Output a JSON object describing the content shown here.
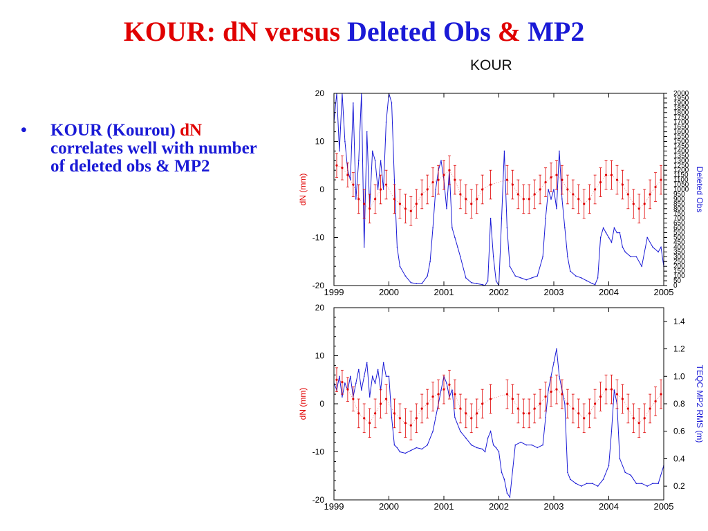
{
  "slide": {
    "title_parts": [
      {
        "text": "KOUR:  dN versus ",
        "color": "red"
      },
      {
        "text": "Deleted Obs ",
        "color": "blue"
      },
      {
        "text": "& ",
        "color": "red"
      },
      {
        "text": "MP2",
        "color": "blue"
      }
    ],
    "bullet": {
      "marker": "•",
      "text_start": "KOUR (Kourou) ",
      "highlight": "dN",
      "text_end": " correlates well with number of deleted obs & MP2"
    }
  },
  "colors": {
    "red_series": "#e00000",
    "blue_series": "#1a1ad6",
    "title_red": "#e00000",
    "title_blue": "#1a1ad6"
  },
  "chart_data": [
    {
      "type": "line",
      "title": "KOUR",
      "xlabel": "",
      "ylabel": "dN (mm)",
      "y2label": "Deleted Obs",
      "xlim": [
        1999,
        2005
      ],
      "ylim": [
        -20,
        20
      ],
      "y2lim": [
        0,
        2000
      ],
      "xticks": [
        "1999",
        "2000",
        "2001",
        "2002",
        "2003",
        "2004",
        "2005"
      ],
      "yticks": [
        "20",
        "10",
        "0",
        "-10",
        "-20"
      ],
      "y2ticks": [
        "0",
        "50",
        "100",
        "150",
        "200",
        "250",
        "300",
        "350",
        "400",
        "450",
        "500",
        "550",
        "600",
        "650",
        "700",
        "750",
        "800",
        "850",
        "900",
        "950",
        "1000",
        "1050",
        "1100",
        "1150",
        "1200",
        "1250",
        "1300",
        "1350",
        "1400",
        "1450",
        "1500",
        "1550",
        "1600",
        "1650",
        "1700",
        "1750",
        "1800",
        "1850",
        "1900",
        "1950",
        "2000"
      ],
      "series": [
        {
          "axis": "left",
          "color": "#e00000",
          "style": "points-with-errorbars",
          "x": [
            1999.05,
            1999.15,
            1999.25,
            1999.35,
            1999.45,
            1999.55,
            1999.65,
            1999.75,
            1999.85,
            1999.95,
            2000.1,
            2000.2,
            2000.3,
            2000.4,
            2000.5,
            2000.6,
            2000.7,
            2000.8,
            2000.9,
            2001.0,
            2001.1,
            2001.2,
            2001.3,
            2001.4,
            2001.5,
            2001.6,
            2001.7,
            2001.85,
            2002.15,
            2002.25,
            2002.35,
            2002.45,
            2002.55,
            2002.65,
            2002.75,
            2002.85,
            2002.95,
            2003.05,
            2003.15,
            2003.25,
            2003.35,
            2003.45,
            2003.55,
            2003.65,
            2003.75,
            2003.85,
            2003.95,
            2004.05,
            2004.15,
            2004.25,
            2004.35,
            2004.45,
            2004.55,
            2004.65,
            2004.75,
            2004.85,
            2004.95
          ],
          "y": [
            5,
            4.5,
            3,
            1,
            -2,
            -3,
            -4,
            -2,
            0,
            1,
            -2,
            -3,
            -4,
            -4.5,
            -3,
            -1,
            0,
            1.5,
            2,
            3,
            4,
            2,
            -1,
            -2,
            -3,
            -2,
            0,
            1,
            2,
            1,
            -1,
            -2,
            -2,
            -1,
            0,
            1.5,
            2.5,
            3,
            2,
            0,
            -1,
            -2,
            -3,
            -2,
            0,
            1.5,
            3,
            3,
            2,
            1,
            -1,
            -3,
            -4,
            -3,
            -1,
            0.5,
            2
          ],
          "err": [
            2.5,
            2.5,
            2.5,
            2.5,
            3,
            3,
            3,
            3,
            3,
            3,
            3,
            3,
            3,
            3,
            3,
            3,
            3,
            3,
            3,
            3,
            3,
            3,
            3,
            3,
            3,
            3,
            3,
            3,
            3,
            3,
            3,
            3,
            3,
            3,
            3,
            3,
            3,
            3,
            3,
            3,
            3,
            3,
            3,
            3,
            3,
            3,
            3,
            3,
            3,
            3,
            3,
            3,
            3,
            3,
            3,
            3,
            3
          ]
        },
        {
          "axis": "right",
          "color": "#1a1ad6",
          "style": "line",
          "x": [
            1999.0,
            1999.05,
            1999.1,
            1999.15,
            1999.2,
            1999.25,
            1999.3,
            1999.35,
            1999.4,
            1999.45,
            1999.5,
            1999.55,
            1999.6,
            1999.65,
            1999.7,
            1999.75,
            1999.8,
            1999.85,
            1999.9,
            1999.95,
            2000.0,
            2000.05,
            2000.1,
            2000.15,
            2000.2,
            2000.3,
            2000.4,
            2000.5,
            2000.6,
            2000.7,
            2000.75,
            2000.8,
            2000.85,
            2000.9,
            2000.95,
            2001.0,
            2001.05,
            2001.1,
            2001.15,
            2001.2,
            2001.25,
            2001.3,
            2001.4,
            2001.5,
            2001.6,
            2001.7,
            2001.75,
            2001.8,
            2001.85,
            2001.9,
            2001.95,
            2002.0,
            2002.05,
            2002.1,
            2002.15,
            2002.2,
            2002.3,
            2002.4,
            2002.5,
            2002.6,
            2002.7,
            2002.8,
            2002.85,
            2002.9,
            2002.95,
            2003.0,
            2003.05,
            2003.1,
            2003.15,
            2003.2,
            2003.25,
            2003.3,
            2003.4,
            2003.5,
            2003.6,
            2003.7,
            2003.75,
            2003.8,
            2003.85,
            2003.9,
            2003.95,
            2004.0,
            2004.05,
            2004.1,
            2004.15,
            2004.2,
            2004.25,
            2004.3,
            2004.4,
            2004.5,
            2004.6,
            2004.7,
            2004.8,
            2004.9,
            2004.95,
            2005.0
          ],
          "y": [
            1700,
            2000,
            1400,
            2000,
            1500,
            1200,
            1100,
            1900,
            900,
            1300,
            2000,
            400,
            1600,
            800,
            1400,
            1300,
            1000,
            1300,
            1000,
            1700,
            2000,
            1900,
            1100,
            400,
            200,
            100,
            30,
            20,
            20,
            100,
            250,
            600,
            1000,
            1200,
            1300,
            1100,
            800,
            1200,
            600,
            500,
            400,
            300,
            80,
            30,
            20,
            10,
            0,
            50,
            700,
            300,
            50,
            0,
            700,
            1400,
            600,
            200,
            100,
            80,
            60,
            80,
            100,
            300,
            700,
            1000,
            900,
            1000,
            800,
            1400,
            900,
            600,
            300,
            150,
            100,
            80,
            50,
            20,
            10,
            80,
            500,
            600,
            550,
            500,
            450,
            600,
            550,
            550,
            400,
            350,
            300,
            300,
            200,
            500,
            400,
            350,
            400,
            200
          ]
        }
      ]
    },
    {
      "type": "line",
      "title": "",
      "xlabel": "",
      "ylabel": "dN (mm)",
      "y2label": "TEQC MP2 RMS (m)",
      "xlim": [
        1999,
        2005
      ],
      "ylim": [
        -20,
        20
      ],
      "y2lim": [
        0.1,
        1.5
      ],
      "xticks": [
        "1999",
        "2000",
        "2001",
        "2002",
        "2003",
        "2004",
        "2005"
      ],
      "yticks": [
        "20",
        "10",
        "0",
        "-10",
        "-20"
      ],
      "y2ticks": [
        "1.4",
        "1.2",
        "1.0",
        "0.8",
        "0.6",
        "0.4",
        "0.2"
      ],
      "series": [
        {
          "axis": "left",
          "color": "#e00000",
          "style": "points-with-errorbars",
          "x": [
            1999.05,
            1999.15,
            1999.25,
            1999.35,
            1999.45,
            1999.55,
            1999.65,
            1999.75,
            1999.85,
            1999.95,
            2000.1,
            2000.2,
            2000.3,
            2000.4,
            2000.5,
            2000.6,
            2000.7,
            2000.8,
            2000.9,
            2001.0,
            2001.1,
            2001.2,
            2001.3,
            2001.4,
            2001.5,
            2001.6,
            2001.7,
            2001.85,
            2002.15,
            2002.25,
            2002.35,
            2002.45,
            2002.55,
            2002.65,
            2002.75,
            2002.85,
            2002.95,
            2003.05,
            2003.15,
            2003.25,
            2003.35,
            2003.45,
            2003.55,
            2003.65,
            2003.75,
            2003.85,
            2003.95,
            2004.05,
            2004.15,
            2004.25,
            2004.35,
            2004.45,
            2004.55,
            2004.65,
            2004.75,
            2004.85,
            2004.95
          ],
          "y": [
            5,
            4.5,
            3,
            1,
            -2,
            -3,
            -4,
            -2,
            0,
            1,
            -2,
            -3,
            -4,
            -4.5,
            -3,
            -1,
            0,
            1.5,
            2,
            3,
            4,
            2,
            -1,
            -2,
            -3,
            -2,
            0,
            1,
            2,
            1,
            -1,
            -2,
            -2,
            -1,
            0,
            1.5,
            2.5,
            3,
            2,
            0,
            -1,
            -2,
            -3,
            -2,
            0,
            1.5,
            3,
            3,
            2,
            1,
            -1,
            -3,
            -4,
            -3,
            -1,
            0.5,
            2
          ],
          "err": [
            2.5,
            2.5,
            2.5,
            2.5,
            3,
            3,
            3,
            3,
            3,
            3,
            3,
            3,
            3,
            3,
            3,
            3,
            3,
            3,
            3,
            3,
            3,
            3,
            3,
            3,
            3,
            3,
            3,
            3,
            3,
            3,
            3,
            3,
            3,
            3,
            3,
            3,
            3,
            3,
            3,
            3,
            3,
            3,
            3,
            3,
            3,
            3,
            3,
            3,
            3,
            3,
            3,
            3,
            3,
            3,
            3,
            3,
            3
          ]
        },
        {
          "axis": "right",
          "color": "#1a1ad6",
          "style": "line",
          "x": [
            1999.0,
            1999.05,
            1999.1,
            1999.15,
            1999.2,
            1999.25,
            1999.3,
            1999.35,
            1999.4,
            1999.45,
            1999.5,
            1999.55,
            1999.6,
            1999.65,
            1999.7,
            1999.75,
            1999.8,
            1999.85,
            1999.9,
            1999.95,
            2000.0,
            2000.05,
            2000.1,
            2000.15,
            2000.2,
            2000.3,
            2000.4,
            2000.5,
            2000.6,
            2000.7,
            2000.8,
            2000.85,
            2000.9,
            2000.95,
            2001.0,
            2001.05,
            2001.1,
            2001.15,
            2001.2,
            2001.3,
            2001.4,
            2001.5,
            2001.6,
            2001.7,
            2001.75,
            2001.8,
            2001.85,
            2001.9,
            2001.95,
            2002.0,
            2002.05,
            2002.1,
            2002.15,
            2002.2,
            2002.3,
            2002.4,
            2002.5,
            2002.6,
            2002.7,
            2002.8,
            2002.85,
            2002.9,
            2002.95,
            2003.0,
            2003.05,
            2003.1,
            2003.15,
            2003.2,
            2003.25,
            2003.3,
            2003.4,
            2003.5,
            2003.6,
            2003.7,
            2003.8,
            2003.9,
            2004.0,
            2004.05,
            2004.1,
            2004.15,
            2004.2,
            2004.3,
            2004.4,
            2004.5,
            2004.6,
            2004.7,
            2004.8,
            2004.9,
            2005.0
          ],
          "y": [
            0.95,
            0.9,
            1.0,
            0.85,
            0.95,
            0.9,
            1.0,
            0.85,
            0.95,
            1.05,
            0.9,
            1.0,
            1.1,
            0.85,
            1.0,
            0.95,
            1.05,
            0.9,
            1.1,
            1.0,
            1.0,
            0.7,
            0.5,
            0.48,
            0.45,
            0.44,
            0.46,
            0.48,
            0.47,
            0.5,
            0.6,
            0.7,
            0.8,
            0.9,
            1.0,
            0.95,
            0.85,
            0.9,
            0.7,
            0.6,
            0.55,
            0.5,
            0.48,
            0.47,
            0.45,
            0.55,
            0.6,
            0.5,
            0.48,
            0.45,
            0.3,
            0.25,
            0.15,
            0.12,
            0.5,
            0.52,
            0.5,
            0.5,
            0.48,
            0.5,
            0.7,
            0.9,
            1.0,
            1.1,
            1.2,
            1.0,
            0.9,
            0.8,
            0.3,
            0.25,
            0.22,
            0.2,
            0.22,
            0.22,
            0.2,
            0.25,
            0.35,
            0.6,
            0.9,
            0.8,
            0.4,
            0.3,
            0.28,
            0.22,
            0.22,
            0.2,
            0.22,
            0.22,
            0.35
          ]
        }
      ]
    }
  ]
}
